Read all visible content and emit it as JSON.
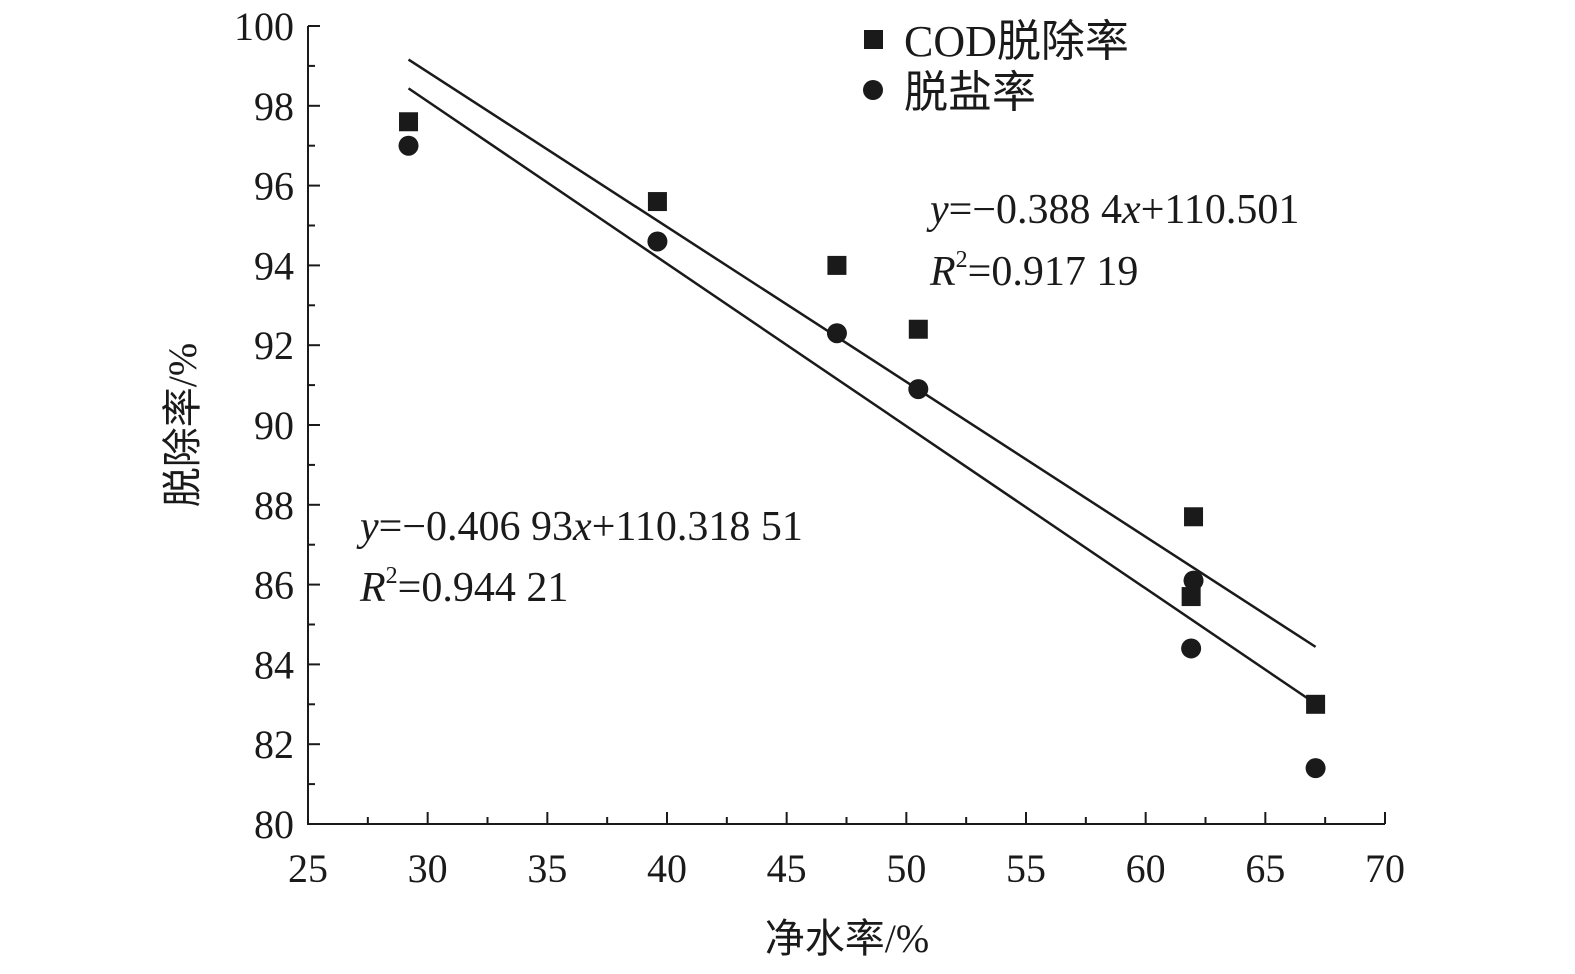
{
  "chart_data": {
    "type": "scatter",
    "title": "",
    "xlabel": "净水率/%",
    "ylabel": "脱除率/%",
    "xlim": [
      25,
      70
    ],
    "ylim": [
      80,
      100
    ],
    "xticks": [
      25,
      30,
      35,
      40,
      45,
      50,
      55,
      60,
      65,
      70
    ],
    "yticks": [
      80,
      82,
      84,
      86,
      88,
      90,
      92,
      94,
      96,
      98,
      100
    ],
    "legend_position": "top-center",
    "series": [
      {
        "name": "COD脱除率",
        "marker": "square",
        "x": [
          29.2,
          39.6,
          47.1,
          50.5,
          61.9,
          62.0,
          67.1
        ],
        "y": [
          97.6,
          95.6,
          94.0,
          92.4,
          85.7,
          87.7,
          83.0
        ],
        "fit": {
          "slope": -0.3884,
          "intercept": 110.501,
          "x_range": [
            29.2,
            67.1
          ]
        },
        "equation_line1": {
          "prefix": "y",
          "rest": "=−0.388 4",
          "var": "x",
          "tail": "+110.501"
        },
        "equation_line2": {
          "prefix": "R",
          "sup": "2",
          "rest": "=0.917 19"
        }
      },
      {
        "name": "脱盐率",
        "marker": "circle",
        "x": [
          29.2,
          39.6,
          47.1,
          50.5,
          61.9,
          62.0,
          67.1
        ],
        "y": [
          97.0,
          94.6,
          92.3,
          90.9,
          84.4,
          86.1,
          81.4
        ],
        "fit": {
          "slope": -0.40693,
          "intercept": 110.31851,
          "x_range": [
            29.2,
            67.1
          ]
        },
        "equation_line1": {
          "prefix": "y",
          "rest": "=−0.406 93",
          "var": "x",
          "tail": "+110.318 51"
        },
        "equation_line2": {
          "prefix": "R",
          "sup": "2",
          "rest": "=0.944 21"
        }
      }
    ]
  }
}
